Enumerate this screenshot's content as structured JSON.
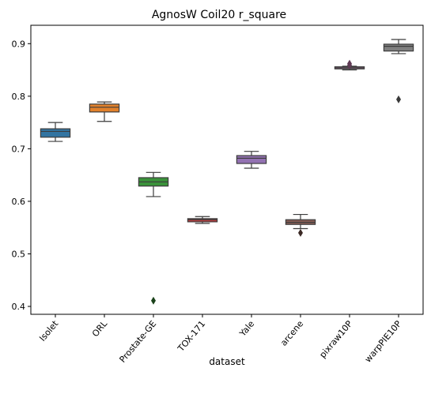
{
  "chart_data": {
    "type": "box",
    "title": "AgnosW Coil20 r_square",
    "xlabel": "dataset",
    "ylabel": "",
    "ylim": [
      0.385,
      0.935
    ],
    "yticks": [
      0.4,
      0.5,
      0.6,
      0.7,
      0.8,
      0.9
    ],
    "ytick_labels": [
      "0.4",
      "0.5",
      "0.6",
      "0.7",
      "0.8",
      "0.9"
    ],
    "grid": false,
    "categories": [
      "Isolet",
      "ORL",
      "Prostate-GE",
      "TOX-171",
      "Yale",
      "arcene",
      "pixraw10P",
      "warpPIE10P"
    ],
    "boxes": [
      {
        "category": "Isolet",
        "color": "#3274a1",
        "whisker_low": 0.714,
        "q1": 0.722,
        "median": 0.733,
        "q3": 0.738,
        "whisker_high": 0.75,
        "outliers": []
      },
      {
        "category": "ORL",
        "color": "#e1812c",
        "whisker_low": 0.752,
        "q1": 0.77,
        "median": 0.779,
        "q3": 0.785,
        "whisker_high": 0.789,
        "outliers": []
      },
      {
        "category": "Prostate-GE",
        "color": "#3a923a",
        "whisker_low": 0.609,
        "q1": 0.629,
        "median": 0.637,
        "q3": 0.645,
        "whisker_high": 0.655,
        "outliers": [
          0.411
        ]
      },
      {
        "category": "TOX-171",
        "color": "#c03d3e",
        "whisker_low": 0.558,
        "q1": 0.561,
        "median": 0.565,
        "q3": 0.567,
        "whisker_high": 0.571,
        "outliers": []
      },
      {
        "category": "Yale",
        "color": "#9372b2",
        "whisker_low": 0.663,
        "q1": 0.672,
        "median": 0.682,
        "q3": 0.687,
        "whisker_high": 0.695,
        "outliers": []
      },
      {
        "category": "arcene",
        "color": "#845b53",
        "whisker_low": 0.548,
        "q1": 0.556,
        "median": 0.56,
        "q3": 0.565,
        "whisker_high": 0.575,
        "outliers": [
          0.54
        ]
      },
      {
        "category": "pixraw10P",
        "color": "#d684bd",
        "whisker_low": 0.85,
        "q1": 0.852,
        "median": 0.854,
        "q3": 0.856,
        "whisker_high": 0.857,
        "outliers": [
          0.862,
          0.859
        ]
      },
      {
        "category": "warpPIE10P",
        "color": "#7f7f7f",
        "whisker_low": 0.881,
        "q1": 0.886,
        "median": 0.895,
        "q3": 0.899,
        "whisker_high": 0.908,
        "outliers": [
          0.794
        ]
      }
    ]
  }
}
